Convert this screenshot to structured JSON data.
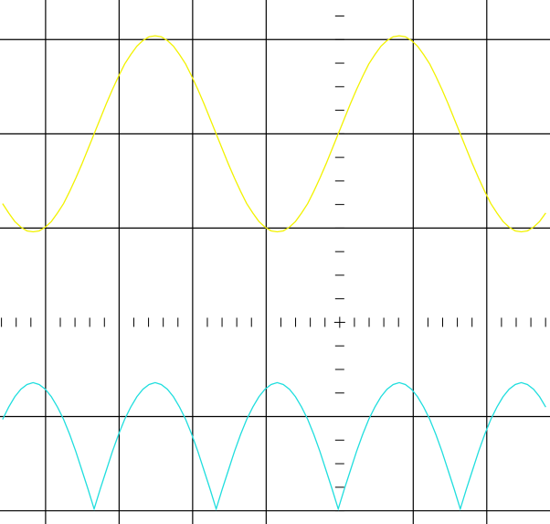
{
  "chart_data": {
    "type": "line",
    "x": [
      -4.585,
      -4.502,
      -4.419,
      -4.336,
      -4.253,
      -4.17,
      -4.087,
      -4.004,
      -3.921,
      -3.838,
      -3.755,
      -3.672,
      -3.589,
      -3.506,
      -3.423,
      -3.34,
      -3.257,
      -3.174,
      -3.091,
      -3.008,
      -2.925,
      -2.842,
      -2.759,
      -2.676,
      -2.593,
      -2.51,
      -2.427,
      -2.344,
      -2.261,
      -2.178,
      -2.095,
      -2.012,
      -1.929,
      -1.846,
      -1.763,
      -1.68,
      -1.597,
      -1.514,
      -1.431,
      -1.348,
      -1.265,
      -1.182,
      -1.099,
      -1.016,
      -0.933,
      -0.85,
      -0.767,
      -0.684,
      -0.601,
      -0.518,
      -0.435,
      -0.352,
      -0.269,
      -0.186,
      -0.103,
      -0.02,
      0.063,
      0.146,
      0.229,
      0.312,
      0.395,
      0.478,
      0.561,
      0.644,
      0.727,
      0.81,
      0.893,
      0.976,
      1.059,
      1.142,
      1.225,
      1.308,
      1.391,
      1.474,
      1.557,
      1.64,
      1.723,
      1.806,
      1.889,
      1.972,
      2.055,
      2.138,
      2.221,
      2.304,
      2.387,
      2.47,
      2.553,
      2.636,
      2.719,
      2.802
    ],
    "series": [
      {
        "color": "#f2f200",
        "values": [
          1.26,
          1.16,
          1.07,
          1.01,
          0.97,
          0.96,
          0.97,
          1.01,
          1.07,
          1.16,
          1.26,
          1.39,
          1.53,
          1.68,
          1.84,
          2.0,
          2.16,
          2.32,
          2.47,
          2.61,
          2.74,
          2.84,
          2.93,
          2.99,
          3.03,
          3.04,
          3.03,
          2.99,
          2.93,
          2.84,
          2.74,
          2.61,
          2.47,
          2.32,
          2.16,
          2.0,
          1.84,
          1.68,
          1.53,
          1.39,
          1.26,
          1.16,
          1.07,
          1.01,
          0.97,
          0.96,
          0.97,
          1.01,
          1.07,
          1.16,
          1.26,
          1.39,
          1.53,
          1.68,
          1.84,
          2.0,
          2.16,
          2.32,
          2.47,
          2.61,
          2.74,
          2.84,
          2.93,
          2.99,
          3.03,
          3.04,
          3.03,
          2.99,
          2.93,
          2.84,
          2.74,
          2.61,
          2.47,
          2.32,
          2.16,
          2.0,
          1.84,
          1.68,
          1.53,
          1.39,
          1.26,
          1.16,
          1.07,
          1.01,
          0.97,
          0.96,
          0.97,
          1.01,
          1.07,
          1.16
        ]
      },
      {
        "color": "#20dede",
        "values": [
          -1.03,
          -0.9,
          -0.79,
          -0.71,
          -0.66,
          -0.64,
          -0.66,
          -0.71,
          -0.79,
          -0.9,
          -1.03,
          -1.19,
          -1.37,
          -1.57,
          -1.77,
          -1.98,
          -1.77,
          -1.57,
          -1.37,
          -1.19,
          -1.03,
          -0.9,
          -0.79,
          -0.71,
          -0.66,
          -0.64,
          -0.66,
          -0.71,
          -0.79,
          -0.9,
          -1.03,
          -1.19,
          -1.37,
          -1.57,
          -1.77,
          -1.98,
          -1.77,
          -1.57,
          -1.37,
          -1.19,
          -1.03,
          -0.9,
          -0.79,
          -0.71,
          -0.66,
          -0.64,
          -0.66,
          -0.71,
          -0.79,
          -0.9,
          -1.03,
          -1.19,
          -1.37,
          -1.57,
          -1.77,
          -1.98,
          -1.77,
          -1.57,
          -1.37,
          -1.19,
          -1.03,
          -0.9,
          -0.79,
          -0.71,
          -0.66,
          -0.64,
          -0.66,
          -0.71,
          -0.79,
          -0.9,
          -1.03,
          -1.19,
          -1.37,
          -1.57,
          -1.77,
          -1.98,
          -1.77,
          -1.57,
          -1.37,
          -1.19,
          -1.03,
          -0.9,
          -0.79,
          -0.71,
          -0.66,
          -0.64,
          -0.66,
          -0.71,
          -0.79,
          -0.9
        ]
      }
    ],
    "xlim": [
      -4.62,
      2.86
    ],
    "ylim": [
      -2.14,
      3.42
    ],
    "xticks": [
      -4,
      -3,
      -2,
      -1,
      1,
      2
    ],
    "yticks": [
      -2,
      -1,
      1,
      2,
      3
    ],
    "grid": true
  }
}
